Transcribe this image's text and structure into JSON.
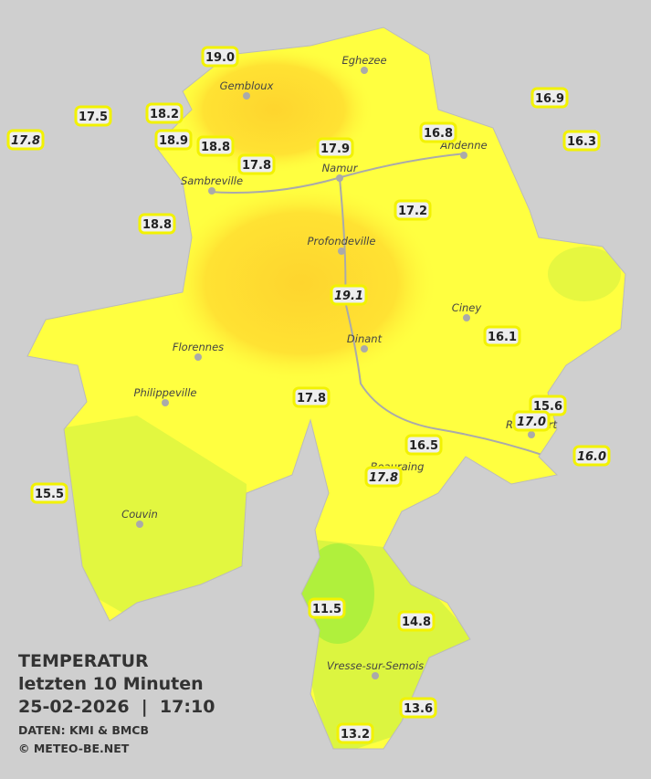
{
  "legend": {
    "title": "TEMPERATUR",
    "period": "letzten 10 Minuten",
    "timestamp": "25-02-2026  |  17:10",
    "source": "DATEN: KMI & BMCB",
    "copyright": "© METEO-BE.NET"
  },
  "cities": [
    "Eghezee",
    "Gembloux",
    "Andenne",
    "Namur",
    "Sambreville",
    "Profondeville",
    "Ciney",
    "Dinant",
    "Florennes",
    "Philippeville",
    "Rochefort",
    "Beauraing",
    "Couvin",
    "Vresse-sur-Semois"
  ],
  "stations": [
    {
      "label": "19.0"
    },
    {
      "label": "17.5"
    },
    {
      "label": "17.8",
      "italic": true
    },
    {
      "label": "18.2"
    },
    {
      "label": "18.9"
    },
    {
      "label": "18.8"
    },
    {
      "label": "17.8"
    },
    {
      "label": "17.9"
    },
    {
      "label": "16.8"
    },
    {
      "label": "16.9"
    },
    {
      "label": "16.3"
    },
    {
      "label": "18.8"
    },
    {
      "label": "17.2"
    },
    {
      "label": "19.1",
      "italic": true
    },
    {
      "label": "16.1"
    },
    {
      "label": "17.8"
    },
    {
      "label": "15.6"
    },
    {
      "label": "17.0",
      "italic": true
    },
    {
      "label": "16.0",
      "italic": true
    },
    {
      "label": "16.5"
    },
    {
      "label": "17.8",
      "italic": true
    },
    {
      "label": "15.5"
    },
    {
      "label": "11.5"
    },
    {
      "label": "14.8"
    },
    {
      "label": "13.6"
    },
    {
      "label": "13.2"
    }
  ]
}
